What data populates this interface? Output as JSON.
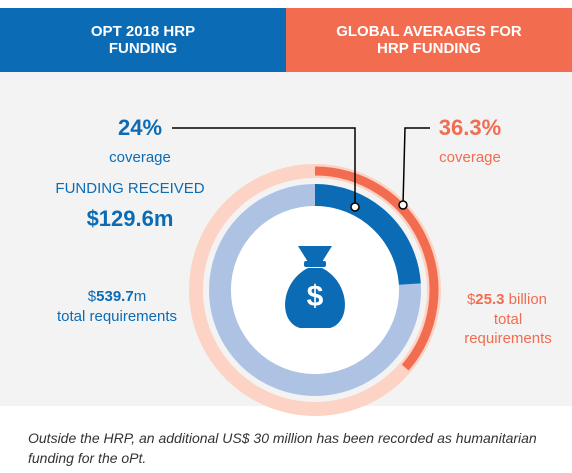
{
  "headers": [
    "OPT 2018 HRP FUNDING",
    "GLOBAL AVERAGES FOR HRP FUNDING"
  ],
  "opt": {
    "coverage": 24,
    "coverage_label": "24%",
    "coverage_text": "coverage",
    "funding_received_text": "FUNDING RECEIVED",
    "funding_received": "$129.6m",
    "requirements_prefix": "$",
    "requirements_value": "539.7",
    "requirements_suffix": "m",
    "requirements_text": "total requirements",
    "color": "#0b6cb5",
    "track_color": "#aec3e4"
  },
  "global": {
    "coverage": 36.3,
    "coverage_label": "36.3%",
    "coverage_text": "coverage",
    "requirements_prefix": "$",
    "requirements_value": "25.3",
    "requirements_suffix": " billion",
    "requirements_text": "total requirements",
    "color": "#f26c50",
    "track_color": "#fcd3c4"
  },
  "icon_symbol": "$",
  "footnote": "Outside the HRP, an additional US$ 30 million has been recorded as humanitarian funding for the oPt."
}
